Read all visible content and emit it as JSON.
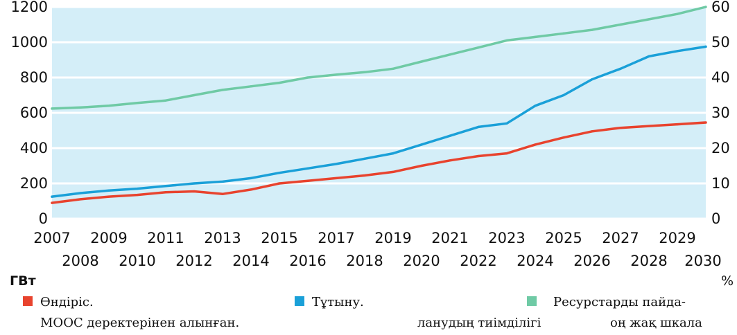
{
  "chart_data": {
    "type": "line",
    "x": [
      2007,
      2008,
      2009,
      2010,
      2011,
      2012,
      2013,
      2014,
      2015,
      2016,
      2017,
      2018,
      2019,
      2020,
      2021,
      2022,
      2023,
      2024,
      2025,
      2026,
      2027,
      2028,
      2029,
      2030
    ],
    "series": [
      {
        "name": "Өндіріс.",
        "axis": "left",
        "color": "#e8432e",
        "values": [
          90,
          110,
          125,
          135,
          150,
          155,
          140,
          165,
          200,
          215,
          230,
          245,
          265,
          300,
          330,
          355,
          370,
          420,
          460,
          495,
          515,
          525,
          535,
          545
        ]
      },
      {
        "name": "Тұтыну.",
        "axis": "left",
        "color": "#1aa0d8",
        "values": [
          125,
          145,
          160,
          170,
          185,
          200,
          210,
          230,
          260,
          285,
          310,
          340,
          370,
          420,
          470,
          520,
          540,
          640,
          700,
          790,
          850,
          920,
          950,
          975
        ]
      },
      {
        "name": "Ресурстарды пайдаланудың тиімділігі",
        "axis": "right",
        "color": "#6fcaa5",
        "values": [
          31.2,
          31.5,
          32,
          32.8,
          33.5,
          35,
          36.5,
          37.5,
          38.5,
          40,
          40.8,
          41.5,
          42.5,
          44.5,
          46.5,
          48.5,
          50.5,
          51.5,
          52.5,
          53.5,
          55,
          56.5,
          58,
          60
        ]
      }
    ],
    "ylim_left": [
      0,
      1200
    ],
    "yticks_left": [
      "0",
      "200",
      "400",
      "600",
      "800",
      "1000",
      "1200"
    ],
    "ylim_right": [
      0,
      60
    ],
    "yticks_right": [
      "0",
      "10",
      "20",
      "30",
      "40",
      "50",
      "60"
    ],
    "xticks_top_row": [
      "2007",
      "2009",
      "2011",
      "2013",
      "2015",
      "2017",
      "2019",
      "2021",
      "2023",
      "2025",
      "2027",
      "2029"
    ],
    "xticks_bottom_row": [
      "2008",
      "2010",
      "2012",
      "2014",
      "2016",
      "2018",
      "2020",
      "2022",
      "2024",
      "2026",
      "2028",
      "2030"
    ],
    "ylabel_left": "ГВт",
    "ylabel_right": "%",
    "grid": true,
    "plot_background": "#d4eef8",
    "legend": {
      "production": "Өндіріс.",
      "consumption": "Тұтыну.",
      "efficiency_line1": "Ресурстарды пайда-",
      "efficiency_line2": "ланудың тиімділігі",
      "efficiency_axis_note": "оң жақ шкала"
    },
    "source": "МООС деректерінен алынған."
  }
}
